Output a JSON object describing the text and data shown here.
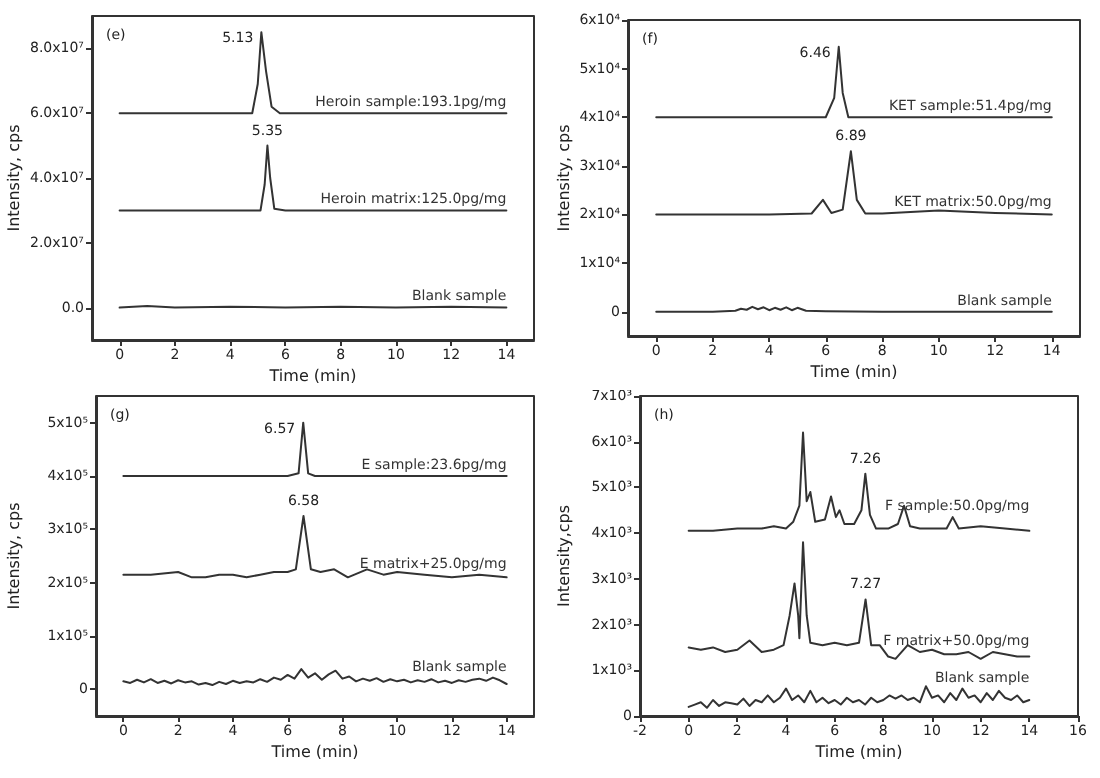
{
  "chart_data": [
    {
      "type": "line",
      "title": "(e)",
      "xlabel": "Time (min)",
      "ylabel": "Intensity, cps",
      "marker": "none",
      "xlim": [
        -1,
        15
      ],
      "xticks": [
        0,
        2,
        4,
        6,
        8,
        10,
        12,
        14
      ],
      "ylim": [
        -10000000,
        90000000
      ],
      "yticks": [
        {
          "value": 0,
          "label": "0.0"
        },
        {
          "value": 20000000,
          "label": "2.0x10⁷"
        },
        {
          "value": 40000000,
          "label": "4.0x10⁷"
        },
        {
          "value": 60000000,
          "label": "6.0x10⁷"
        },
        {
          "value": 80000000,
          "label": "8.0x10⁷"
        }
      ],
      "annotations": [
        {
          "text": "5.13",
          "x": 5.13,
          "y": 85000000
        },
        {
          "text": "5.35",
          "x": 5.35,
          "y": 50000000
        }
      ],
      "series": [
        {
          "name": "Heroin sample:193.1pg/mg",
          "color": "#333333",
          "x": [
            0,
            1,
            2,
            3,
            4,
            4.8,
            5.0,
            5.13,
            5.3,
            5.5,
            5.8,
            6.5,
            8,
            10,
            12,
            14
          ],
          "values": [
            60000000,
            60000000,
            60000000,
            60000000,
            60000000,
            60000000,
            69000000,
            85000000,
            73000000,
            62000000,
            60000000,
            60000000,
            60000000,
            60000000,
            60000000,
            60000000
          ]
        },
        {
          "name": "Heroin matrix:125.0pg/mg",
          "color": "#333333",
          "x": [
            0,
            2,
            4,
            5.1,
            5.25,
            5.35,
            5.45,
            5.6,
            6,
            8,
            10,
            12,
            14
          ],
          "values": [
            30000000,
            30000000,
            30000000,
            30000000,
            38000000,
            50000000,
            40000000,
            30500000,
            30000000,
            30000000,
            30000000,
            30000000,
            30000000
          ]
        },
        {
          "name": "Blank sample",
          "color": "#333333",
          "x": [
            0,
            1,
            2,
            4,
            6,
            8,
            10,
            12,
            14
          ],
          "values": [
            0,
            500000,
            0,
            300000,
            0,
            300000,
            0,
            300000,
            0
          ]
        }
      ]
    },
    {
      "type": "line",
      "title": "(f)",
      "xlabel": "Time (min)",
      "ylabel": "Intensity, cps",
      "marker": "none",
      "xlim": [
        -1,
        15
      ],
      "xticks": [
        0,
        2,
        4,
        6,
        8,
        10,
        12,
        14
      ],
      "ylim": [
        -5000,
        60000
      ],
      "yticks": [
        {
          "value": 0,
          "label": "0"
        },
        {
          "value": 10000,
          "label": "1x10⁴"
        },
        {
          "value": 20000,
          "label": "2x10⁴"
        },
        {
          "value": 30000,
          "label": "3x10⁴"
        },
        {
          "value": 40000,
          "label": "4x10⁴"
        },
        {
          "value": 50000,
          "label": "5x10⁴"
        },
        {
          "value": 60000,
          "label": "6x10⁴"
        }
      ],
      "annotations": [
        {
          "text": "6.46",
          "x": 6.46,
          "y": 54500
        },
        {
          "text": "6.89",
          "x": 6.89,
          "y": 33000
        }
      ],
      "series": [
        {
          "name": "KET sample:51.4pg/mg",
          "color": "#333333",
          "x": [
            0,
            2,
            4,
            6,
            6.3,
            6.46,
            6.6,
            6.8,
            8,
            10,
            12,
            14
          ],
          "values": [
            40000,
            40000,
            40000,
            40000,
            44000,
            54500,
            45000,
            40000,
            40000,
            40000,
            40000,
            40000
          ]
        },
        {
          "name": "KET matrix:50.0pg/mg",
          "color": "#333333",
          "x": [
            0,
            2,
            4,
            5.5,
            5.9,
            6.2,
            6.6,
            6.89,
            7.1,
            7.4,
            8,
            10,
            12,
            14
          ],
          "values": [
            20000,
            20000,
            20000,
            20200,
            23000,
            20300,
            21000,
            33000,
            23000,
            20200,
            20200,
            20800,
            20300,
            20000
          ]
        },
        {
          "name": "Blank sample",
          "color": "#333333",
          "x": [
            0,
            1,
            2,
            2.8,
            3.0,
            3.2,
            3.4,
            3.6,
            3.8,
            4.0,
            4.2,
            4.4,
            4.6,
            4.8,
            5.0,
            5.3,
            6,
            8,
            10,
            12,
            14
          ],
          "values": [
            0,
            0,
            0,
            200,
            600,
            400,
            1000,
            500,
            900,
            300,
            800,
            400,
            900,
            300,
            800,
            200,
            100,
            0,
            0,
            0,
            0
          ]
        }
      ]
    },
    {
      "type": "line",
      "title": "(g)",
      "xlabel": "Time (min)",
      "ylabel": "Intensity, cps",
      "marker": "none",
      "xlim": [
        -1,
        15
      ],
      "xticks": [
        0,
        2,
        4,
        6,
        8,
        10,
        12,
        14
      ],
      "ylim": [
        -50000,
        550000
      ],
      "yticks": [
        {
          "value": 0,
          "label": "0"
        },
        {
          "value": 100000,
          "label": "1x10⁵"
        },
        {
          "value": 200000,
          "label": "2x10⁵"
        },
        {
          "value": 300000,
          "label": "3x10⁵"
        },
        {
          "value": 400000,
          "label": "4x10⁵"
        },
        {
          "value": 500000,
          "label": "5x10⁵"
        }
      ],
      "annotations": [
        {
          "text": "6.57",
          "x": 6.57,
          "y": 500000
        },
        {
          "text": "6.58",
          "x": 6.58,
          "y": 325000
        }
      ],
      "series": [
        {
          "name": "E sample:23.6pg/mg",
          "color": "#333333",
          "x": [
            0,
            2,
            4,
            6,
            6.4,
            6.57,
            6.75,
            7,
            8,
            10,
            12,
            14
          ],
          "values": [
            400000,
            400000,
            400000,
            400000,
            405000,
            500000,
            405000,
            400000,
            400000,
            400000,
            400000,
            400000
          ]
        },
        {
          "name": "E matrix+25.0pg/mg",
          "color": "#333333",
          "x": [
            0,
            1,
            2,
            2.5,
            3,
            3.5,
            4,
            4.5,
            5,
            5.5,
            6,
            6.3,
            6.58,
            6.85,
            7.2,
            7.7,
            8.2,
            8.9,
            9.5,
            10,
            11,
            12,
            13,
            14
          ],
          "values": [
            215000,
            215000,
            220000,
            210000,
            210000,
            215000,
            215000,
            210000,
            215000,
            220000,
            220000,
            225000,
            325000,
            225000,
            220000,
            225000,
            210000,
            225000,
            215000,
            220000,
            215000,
            210000,
            215000,
            210000
          ]
        },
        {
          "name": "Blank sample",
          "color": "#333333",
          "x": [
            0,
            0.25,
            0.5,
            0.75,
            1,
            1.25,
            1.5,
            1.75,
            2,
            2.25,
            2.5,
            2.75,
            3,
            3.25,
            3.5,
            3.75,
            4,
            4.25,
            4.5,
            4.75,
            5,
            5.25,
            5.5,
            5.75,
            6,
            6.25,
            6.5,
            6.75,
            7,
            7.25,
            7.5,
            7.75,
            8,
            8.25,
            8.5,
            8.75,
            9,
            9.25,
            9.5,
            9.75,
            10,
            10.25,
            10.5,
            10.75,
            11,
            11.25,
            11.5,
            11.75,
            12,
            12.25,
            12.5,
            12.75,
            13,
            13.25,
            13.5,
            13.75,
            14
          ],
          "values": [
            15000,
            12000,
            18000,
            13000,
            19000,
            12000,
            16000,
            11000,
            17000,
            13000,
            15000,
            9000,
            12000,
            8000,
            14000,
            10000,
            16000,
            12000,
            15000,
            13000,
            19000,
            14000,
            22000,
            18000,
            27000,
            20000,
            38000,
            22000,
            30000,
            18000,
            28000,
            35000,
            20000,
            24000,
            15000,
            20000,
            16000,
            21000,
            14000,
            19000,
            15000,
            18000,
            13000,
            17000,
            14000,
            19000,
            13000,
            16000,
            12000,
            17000,
            14000,
            18000,
            20000,
            16000,
            22000,
            17000,
            10000
          ]
        }
      ]
    },
    {
      "type": "line",
      "title": "(h)",
      "xlabel": "Time (min)",
      "ylabel": "Intensity,cps",
      "marker": "none",
      "xlim": [
        -2,
        16
      ],
      "xticks": [
        -2,
        0,
        2,
        4,
        6,
        8,
        10,
        12,
        14,
        16
      ],
      "ylim": [
        0,
        7000
      ],
      "yticks": [
        {
          "value": 0,
          "label": "0"
        },
        {
          "value": 1000,
          "label": "1x10³"
        },
        {
          "value": 2000,
          "label": "2x10³"
        },
        {
          "value": 3000,
          "label": "3x10³"
        },
        {
          "value": 4000,
          "label": "4x10³"
        },
        {
          "value": 5000,
          "label": "5x10³"
        },
        {
          "value": 6000,
          "label": "6x10³"
        },
        {
          "value": 7000,
          "label": "7x10³"
        }
      ],
      "annotations": [
        {
          "text": "7.26",
          "x": 7.26,
          "y": 5300
        },
        {
          "text": "7.27",
          "x": 7.27,
          "y": 2550
        }
      ],
      "series": [
        {
          "name": "F sample:50.0pg/mg",
          "color": "#333333",
          "x": [
            0,
            1,
            2,
            3,
            3.5,
            4,
            4.3,
            4.55,
            4.7,
            4.85,
            5.0,
            5.2,
            5.6,
            5.85,
            6.05,
            6.2,
            6.4,
            6.8,
            7.1,
            7.26,
            7.45,
            7.7,
            8.2,
            8.6,
            8.85,
            9.1,
            9.5,
            10,
            10.6,
            10.85,
            11.1,
            12,
            13,
            14
          ],
          "values": [
            4050,
            4050,
            4100,
            4100,
            4150,
            4100,
            4250,
            4600,
            6200,
            4700,
            4900,
            4250,
            4300,
            4800,
            4350,
            4500,
            4200,
            4200,
            4500,
            5300,
            4400,
            4100,
            4100,
            4200,
            4600,
            4150,
            4100,
            4100,
            4100,
            4350,
            4100,
            4150,
            4100,
            4050
          ]
        },
        {
          "name": "F matrix+50.0pg/mg",
          "color": "#333333",
          "x": [
            0,
            0.5,
            1,
            1.5,
            2,
            2.5,
            3,
            3.5,
            3.9,
            4.15,
            4.35,
            4.5,
            4.55,
            4.6,
            4.7,
            4.85,
            5.0,
            5.5,
            6,
            6.5,
            7.0,
            7.27,
            7.5,
            7.85,
            8.2,
            8.5,
            9,
            9.5,
            10,
            10.5,
            11,
            11.5,
            12,
            12.5,
            13,
            13.5,
            14
          ],
          "values": [
            1500,
            1450,
            1500,
            1400,
            1450,
            1650,
            1400,
            1450,
            1550,
            2200,
            2900,
            2200,
            1700,
            2400,
            3800,
            2200,
            1600,
            1550,
            1600,
            1550,
            1600,
            2550,
            1550,
            1550,
            1300,
            1250,
            1550,
            1400,
            1450,
            1350,
            1350,
            1400,
            1250,
            1400,
            1350,
            1300,
            1300
          ]
        },
        {
          "name": "Blank sample",
          "color": "#333333",
          "x": [
            0,
            0.25,
            0.5,
            0.75,
            1,
            1.25,
            1.5,
            1.75,
            2,
            2.25,
            2.5,
            2.75,
            3,
            3.25,
            3.5,
            3.75,
            4,
            4.25,
            4.5,
            4.75,
            5,
            5.25,
            5.5,
            5.75,
            6,
            6.25,
            6.5,
            6.75,
            7,
            7.25,
            7.5,
            7.75,
            8,
            8.25,
            8.5,
            8.75,
            9,
            9.25,
            9.5,
            9.75,
            10,
            10.25,
            10.5,
            10.75,
            11,
            11.25,
            11.5,
            11.75,
            12,
            12.25,
            12.5,
            12.75,
            13,
            13.25,
            13.5,
            13.75,
            14
          ],
          "values": [
            200,
            250,
            300,
            180,
            350,
            220,
            300,
            280,
            250,
            380,
            220,
            350,
            300,
            450,
            300,
            400,
            600,
            350,
            450,
            300,
            550,
            300,
            400,
            280,
            350,
            250,
            400,
            300,
            350,
            250,
            400,
            300,
            350,
            450,
            380,
            450,
            350,
            400,
            300,
            650,
            400,
            450,
            300,
            500,
            350,
            600,
            400,
            450,
            300,
            500,
            350,
            550,
            400,
            350,
            450,
            300,
            350
          ]
        }
      ]
    }
  ]
}
